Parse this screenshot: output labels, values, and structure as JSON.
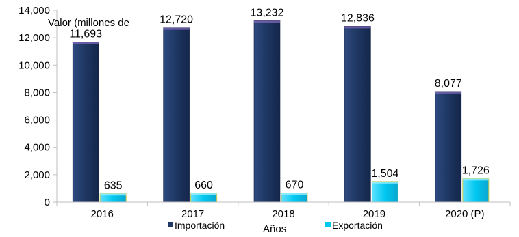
{
  "chart_data": {
    "type": "bar",
    "ylabel": "Valor (millones de",
    "xlabel": "Años",
    "categories": [
      "2016",
      "2017",
      "2018",
      "2019",
      "2020 (P)"
    ],
    "series": [
      {
        "name": "Importación",
        "values": [
          11693,
          12720,
          13232,
          12836,
          8077
        ],
        "labels": [
          "11,693",
          "12,720",
          "13,232",
          "12,836",
          "8,077"
        ],
        "color": "#1f3864"
      },
      {
        "name": "Exportación",
        "values": [
          635,
          660,
          670,
          1504,
          1726
        ],
        "labels": [
          "635",
          "660",
          "670",
          "1,504",
          "1,726"
        ],
        "color": "#00c8f0"
      }
    ],
    "yticks": [
      "0",
      "2,000",
      "4,000",
      "6,000",
      "8,000",
      "10,000",
      "12,000",
      "14,000"
    ],
    "ylim": [
      0,
      14000
    ],
    "grid": false,
    "legend_position": "bottom"
  }
}
